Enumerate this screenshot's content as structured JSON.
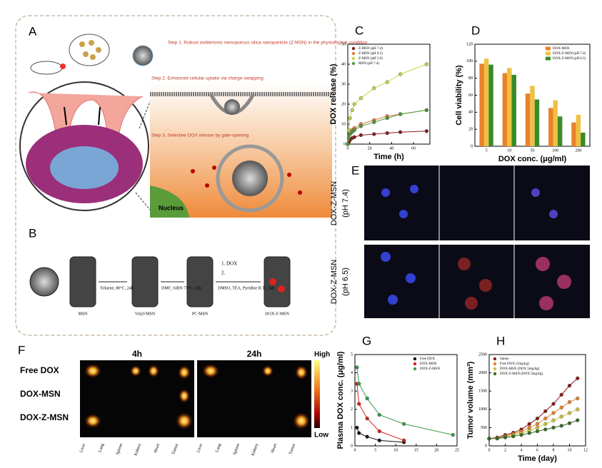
{
  "panels": {
    "A": {
      "label": "A",
      "step1": "Step 1. Robust zwitterionic mesoporous silica nanoparticle (Z-MSN) in the physiological condition",
      "step2": "Step 2. Enhanced cellular uptake via charge-swapping",
      "step3": "Step 3. Selective DOX release by gate-opening",
      "nucleus": "Nucleus"
    },
    "B": {
      "label": "B",
      "compounds": [
        "MSN",
        "Vinyl-MSN",
        "PC-MSN",
        "DOX-Z-MSN"
      ],
      "conditions": [
        "Toluene, 80°C, 24h",
        "DMF, AIBN 75°C, 12h",
        "DMSO, TEA, Pyridine R.T., 24h"
      ],
      "reagents": [
        "1. DOX",
        "2."
      ]
    },
    "E": {
      "label": "E",
      "rows": [
        [
          "DOX-Z-MSN",
          "(pH 7.4)"
        ],
        [
          "DOX-Z-MSN",
          "(pH 6.5)"
        ]
      ]
    },
    "F": {
      "label": "F",
      "times": [
        "4h",
        "24h"
      ],
      "rows": [
        "Free DOX",
        "DOX-MSN",
        "DOX-Z-MSN"
      ],
      "organs": [
        "Liver",
        "Lung",
        "Spleen",
        "Kidney",
        "Heart",
        "Tumor"
      ],
      "scale": [
        "High",
        "Low"
      ]
    }
  },
  "chart_data": [
    {
      "label": "C",
      "type": "line",
      "xlabel": "Time (h)",
      "ylabel": "DOX release (%)",
      "legend": "upper left",
      "x": [
        0,
        1,
        2,
        4,
        6,
        12,
        24,
        36,
        48,
        72
      ],
      "xlim": [
        0,
        75
      ],
      "xticks": [
        0,
        20,
        40,
        60
      ],
      "ylim": [
        0,
        50
      ],
      "yticks": [
        0,
        10,
        20,
        30,
        40,
        50
      ],
      "series": [
        {
          "name": "Z-MSN (pH 7.4)",
          "color": "#8b1a1a",
          "values": [
            0,
            1,
            2,
            3,
            3.5,
            4.5,
            5,
            5.5,
            6,
            6.5
          ]
        },
        {
          "name": "Z-MSN (pH 6.5)",
          "color": "#e07b39",
          "values": [
            0,
            3,
            5,
            7,
            8,
            10,
            12,
            14,
            15,
            17
          ]
        },
        {
          "name": "Z-MSN (pH 5.0)",
          "color": "#c8d44a",
          "values": [
            0,
            7,
            13,
            17,
            20,
            23,
            28,
            31,
            35,
            40
          ]
        },
        {
          "name": "MSN (pH 7.4)",
          "color": "#4e9a3a",
          "values": [
            0,
            3,
            5,
            6,
            7,
            9,
            11,
            13,
            15,
            17
          ]
        }
      ]
    },
    {
      "label": "D",
      "type": "bar",
      "xlabel": "DOX conc. (μg/ml)",
      "ylabel": "Cell viability (%)",
      "legend": "upper right",
      "categories": [
        "5",
        "10",
        "50",
        "100",
        "200"
      ],
      "ylim": [
        0,
        120
      ],
      "yticks": [
        0,
        20,
        40,
        60,
        80,
        100,
        120
      ],
      "series": [
        {
          "name": "DOX-MSN",
          "color": "#e8822a",
          "values": [
            97,
            86,
            62,
            45,
            28
          ]
        },
        {
          "name": "DOX-Z-MSN (pH 7.4)",
          "color": "#f0c040",
          "values": [
            103,
            92,
            71,
            54,
            37
          ]
        },
        {
          "name": "DOX-Z-MSN (pH 6.5)",
          "color": "#3a8a2a",
          "values": [
            96,
            84,
            55,
            35,
            16
          ]
        }
      ]
    },
    {
      "label": "G",
      "type": "line",
      "ylabel": "Plasma DOX conc. (μg/ml)",
      "legend": "upper right",
      "x": [
        0.5,
        1,
        3,
        6,
        12,
        24
      ],
      "xlim": [
        0,
        25
      ],
      "xticks": [
        0,
        5,
        10,
        15,
        20,
        25
      ],
      "ylim": [
        0,
        5
      ],
      "yticks": [
        0,
        1,
        2,
        3,
        4,
        5
      ],
      "series": [
        {
          "name": "Free DOX",
          "color": "#111111",
          "values": [
            1.0,
            0.7,
            0.5,
            0.3,
            0.2,
            null
          ]
        },
        {
          "name": "DOX-MSN",
          "color": "#d42020",
          "values": [
            3.4,
            2.3,
            1.5,
            0.8,
            0.3,
            null
          ]
        },
        {
          "name": "DOX-Z-MSN",
          "color": "#3a9a4a",
          "values": [
            4.3,
            3.4,
            2.6,
            1.7,
            1.2,
            0.6
          ]
        }
      ]
    },
    {
      "label": "H",
      "type": "line",
      "xlabel": "Time (day)",
      "ylabel": "Tumor volume (mm³)",
      "legend": "upper left",
      "x": [
        0,
        1,
        2,
        3,
        4,
        5,
        6,
        7,
        8,
        9,
        10,
        11
      ],
      "xlim": [
        0,
        12
      ],
      "xticks": [
        0,
        2,
        4,
        6,
        8,
        10,
        12
      ],
      "ylim": [
        0,
        2500
      ],
      "yticks": [
        0,
        500,
        1000,
        1500,
        2000,
        2500
      ],
      "series": [
        {
          "name": "Saline",
          "color": "#8b1a1a",
          "values": [
            200,
            230,
            300,
            360,
            450,
            600,
            750,
            950,
            1150,
            1400,
            1650,
            1850
          ]
        },
        {
          "name": "Free DOX (5mg/kg)",
          "color": "#e8822a",
          "values": [
            200,
            220,
            270,
            330,
            400,
            500,
            600,
            750,
            900,
            1050,
            1200,
            1300
          ]
        },
        {
          "name": "DOX-MSN (DOX 5mg/kg)",
          "color": "#c8c040",
          "values": [
            200,
            210,
            250,
            300,
            350,
            420,
            500,
            600,
            700,
            800,
            900,
            1000
          ]
        },
        {
          "name": "DOX-Z-MSN (DOX 5mg/kg)",
          "color": "#3a6a2a",
          "values": [
            200,
            200,
            230,
            260,
            300,
            350,
            400,
            450,
            500,
            550,
            620,
            700
          ]
        }
      ]
    }
  ]
}
